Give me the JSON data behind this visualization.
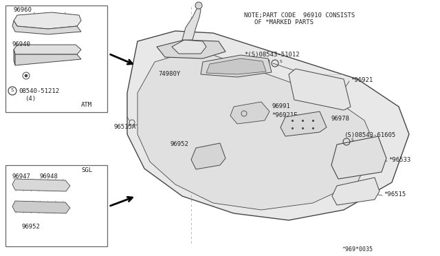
{
  "bg_color": "#ffffff",
  "line_color": "#444444",
  "text_color": "#222222",
  "fill_light": "#f0f0f0",
  "fill_mid": "#e0e0e0",
  "fill_dark": "#cccccc",
  "note_line1": "NOTE;PART CODE  96910 CONSISTS",
  "note_line2": "OF *MARKED PARTS",
  "diagram_id": "^969*0035",
  "figw": 6.4,
  "figh": 3.72,
  "dpi": 100
}
